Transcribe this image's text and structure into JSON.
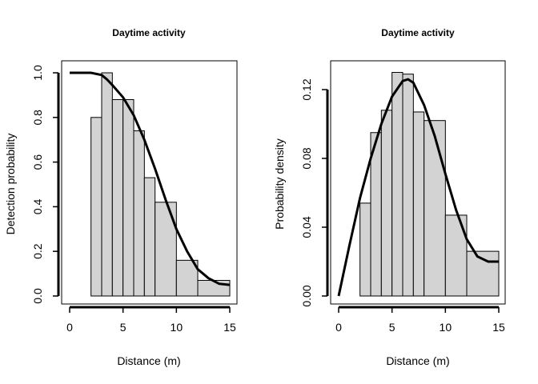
{
  "chart_data": [
    {
      "type": "bar",
      "title": "Daytime activity",
      "xlabel": "Distance (m)",
      "ylabel": "Detection probability",
      "xlim": [
        0,
        15
      ],
      "ylim": [
        0,
        1
      ],
      "xticks": [
        "0",
        "5",
        "10",
        "15"
      ],
      "yticks": [
        "0.0",
        "0.2",
        "0.4",
        "0.6",
        "0.8",
        "1.0"
      ],
      "bins": [
        {
          "x0": 2,
          "x1": 3,
          "value": 0.8
        },
        {
          "x0": 3,
          "x1": 4,
          "value": 1.0
        },
        {
          "x0": 4,
          "x1": 5,
          "value": 0.88
        },
        {
          "x0": 5,
          "x1": 6,
          "value": 0.88
        },
        {
          "x0": 6,
          "x1": 7,
          "value": 0.74
        },
        {
          "x0": 7,
          "x1": 8,
          "value": 0.53
        },
        {
          "x0": 8,
          "x1": 10,
          "value": 0.42
        },
        {
          "x0": 10,
          "x1": 12,
          "value": 0.16
        },
        {
          "x0": 12,
          "x1": 15,
          "value": 0.07
        }
      ],
      "curve": {
        "x": [
          0,
          1,
          2,
          3,
          3.5,
          4,
          5,
          6,
          7,
          8,
          9,
          10,
          11,
          12,
          13,
          14,
          15
        ],
        "y": [
          1.0,
          1.0,
          1.0,
          0.99,
          0.97,
          0.945,
          0.89,
          0.81,
          0.7,
          0.57,
          0.43,
          0.3,
          0.2,
          0.12,
          0.08,
          0.055,
          0.05
        ]
      }
    },
    {
      "type": "bar",
      "title": "Daytime activity",
      "xlabel": "Distance (m)",
      "ylabel": "Probability density",
      "xlim": [
        0,
        15
      ],
      "ylim": [
        0,
        0.13
      ],
      "xticks": [
        "0",
        "5",
        "10",
        "15"
      ],
      "yticks": [
        "0.00",
        "0.04",
        "0.08",
        "0.12"
      ],
      "bins": [
        {
          "x0": 2,
          "x1": 3,
          "value": 0.054
        },
        {
          "x0": 3,
          "x1": 4,
          "value": 0.095
        },
        {
          "x0": 4,
          "x1": 5,
          "value": 0.108
        },
        {
          "x0": 5,
          "x1": 6,
          "value": 0.13
        },
        {
          "x0": 6,
          "x1": 7,
          "value": 0.129
        },
        {
          "x0": 7,
          "x1": 8,
          "value": 0.107
        },
        {
          "x0": 8,
          "x1": 10,
          "value": 0.102
        },
        {
          "x0": 10,
          "x1": 12,
          "value": 0.047
        },
        {
          "x0": 12,
          "x1": 15,
          "value": 0.026
        }
      ],
      "curve": {
        "x": [
          0,
          1,
          2,
          3,
          4,
          5,
          6,
          6.5,
          7,
          8,
          9,
          10,
          11,
          12,
          13,
          14,
          15
        ],
        "y": [
          0.0,
          0.029,
          0.057,
          0.08,
          0.1,
          0.116,
          0.125,
          0.126,
          0.124,
          0.111,
          0.093,
          0.071,
          0.05,
          0.033,
          0.023,
          0.02,
          0.02
        ]
      }
    }
  ]
}
